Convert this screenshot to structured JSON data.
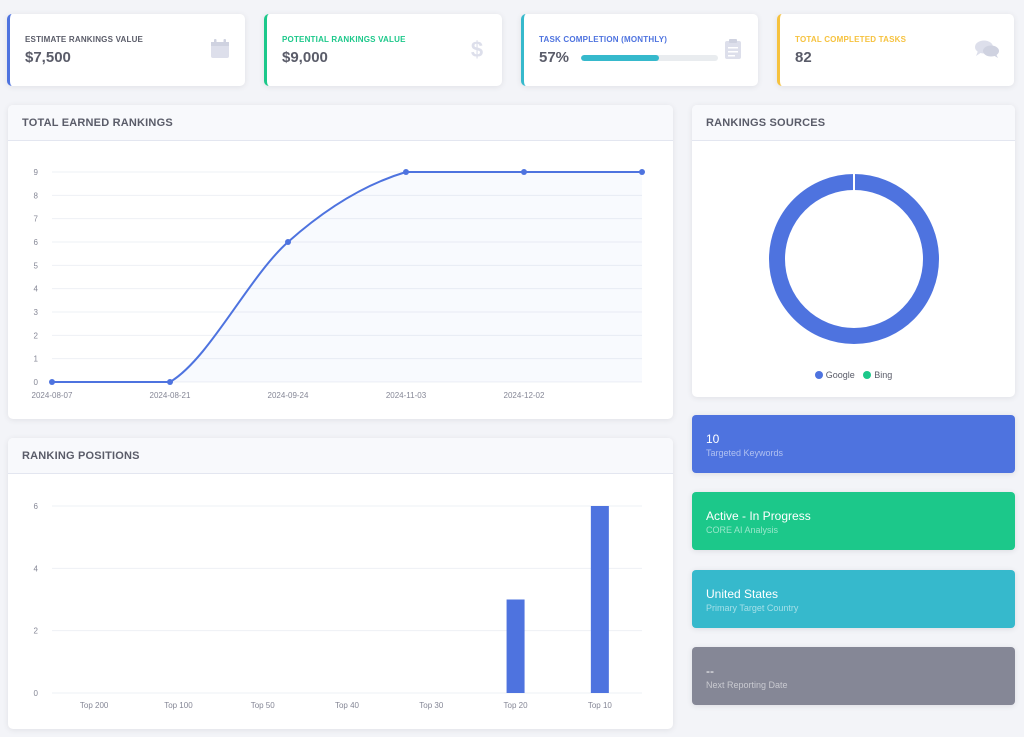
{
  "kpis": [
    {
      "label": "ESTIMATE RANKINGS VALUE",
      "value": "$7,500",
      "color": "#4e73df",
      "icon": "calendar-icon"
    },
    {
      "label": "POTENTIAL RANKINGS VALUE",
      "value": "$9,000",
      "color": "#1cc88a",
      "icon": "dollar-icon"
    },
    {
      "label": "TASK COMPLETION (MONTHLY)",
      "value": "57%",
      "progress": 57,
      "color": "#36b9cc",
      "icon": "clipboard-icon"
    },
    {
      "label": "TOTAL COMPLETED TASKS",
      "value": "82",
      "color": "#f6c23e",
      "icon": "comments-icon"
    }
  ],
  "earned": {
    "title": "TOTAL EARNED RANKINGS",
    "chart_data": {
      "type": "line",
      "x_tick_labels": [
        "2024-08-07",
        "2024-08-21",
        "2024-09-24",
        "2024-11-03",
        "2024-12-02"
      ],
      "y_ticks": [
        "0",
        "1",
        "2",
        "3",
        "4",
        "5",
        "6",
        "7",
        "8",
        "9"
      ],
      "ylim": [
        0,
        9
      ],
      "values": [
        0,
        0,
        6,
        9,
        9,
        9
      ],
      "line_color": "#4e73df",
      "grid": true
    }
  },
  "positions": {
    "title": "RANKING POSITIONS",
    "chart_data": {
      "type": "bar",
      "categories": [
        "Top 200",
        "Top 100",
        "Top 50",
        "Top 40",
        "Top 30",
        "Top 20",
        "Top 10"
      ],
      "values": [
        0,
        0,
        0,
        0,
        0,
        3,
        6
      ],
      "y_ticks": [
        "0",
        "2",
        "4",
        "6"
      ],
      "ylim": [
        0,
        6
      ],
      "bar_color": "#4e73df",
      "grid": true
    }
  },
  "sources": {
    "title": "RANKINGS SOURCES",
    "chart_data": {
      "type": "pie",
      "labels": [
        "Google",
        "Bing"
      ],
      "values": [
        100,
        0
      ],
      "colors": [
        "#4e73df",
        "#1cc88a"
      ],
      "legend": "bottom"
    }
  },
  "stats": [
    {
      "title": "10",
      "subtitle": "Targeted Keywords",
      "color": "#4e73df"
    },
    {
      "title": "Active - In Progress",
      "subtitle": "CORE AI Analysis",
      "color": "#1cc88a"
    },
    {
      "title": "United States",
      "subtitle": "Primary Target Country",
      "color": "#36b9cc"
    },
    {
      "title": "--",
      "subtitle": "Next Reporting Date",
      "color": "#858796"
    }
  ]
}
